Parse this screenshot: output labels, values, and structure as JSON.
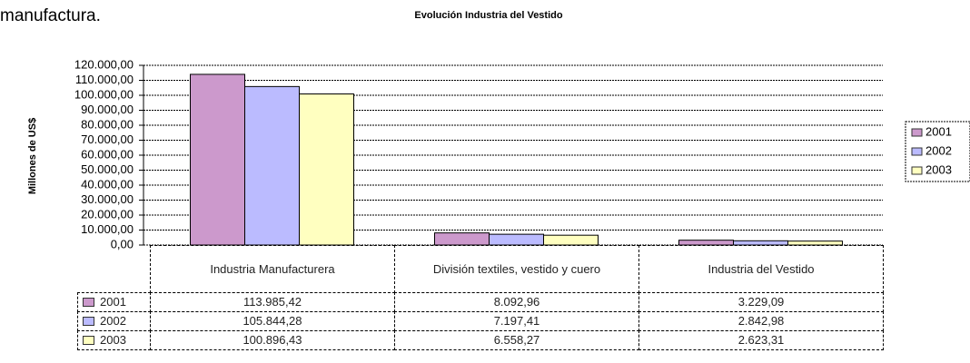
{
  "page_text": "manufactura.",
  "chart_data": {
    "type": "bar",
    "title": "Evolución Industria del Vestido",
    "y_label": "Millones de US$",
    "categories": [
      "Industria Manufacturera",
      "División textiles, vestido y cuero",
      "Industria del Vestido"
    ],
    "series": [
      {
        "name": "2001",
        "color": "#cc99cc",
        "values": [
          113985.42,
          8092.96,
          3229.09
        ],
        "value_labels": [
          "113.985,42",
          "8.092,96",
          "3.229,09"
        ]
      },
      {
        "name": "2002",
        "color": "#bbbbff",
        "values": [
          105844.28,
          7197.41,
          2842.98
        ],
        "value_labels": [
          "105.844,28",
          "7.197,41",
          "2.842,98"
        ]
      },
      {
        "name": "2003",
        "color": "#ffffc0",
        "values": [
          100896.43,
          6558.27,
          2623.31
        ],
        "value_labels": [
          "100.896,43",
          "6.558,27",
          "2.623,31"
        ]
      }
    ],
    "ylim": [
      0,
      120000
    ],
    "yticks": [
      {
        "value": 0,
        "label": "0,00"
      },
      {
        "value": 10000,
        "label": "10.000,00"
      },
      {
        "value": 20000,
        "label": "20.000,00"
      },
      {
        "value": 30000,
        "label": "30.000,00"
      },
      {
        "value": 40000,
        "label": "40.000,00"
      },
      {
        "value": 50000,
        "label": "50.000,00"
      },
      {
        "value": 60000,
        "label": "60.000,00"
      },
      {
        "value": 70000,
        "label": "70.000,00"
      },
      {
        "value": 80000,
        "label": "80.000,00"
      },
      {
        "value": 90000,
        "label": "90.000,00"
      },
      {
        "value": 100000,
        "label": "100.000,00"
      },
      {
        "value": 110000,
        "label": "110.000,00"
      },
      {
        "value": 120000,
        "label": "120.000,00"
      }
    ],
    "grid": true,
    "legend": "right"
  }
}
